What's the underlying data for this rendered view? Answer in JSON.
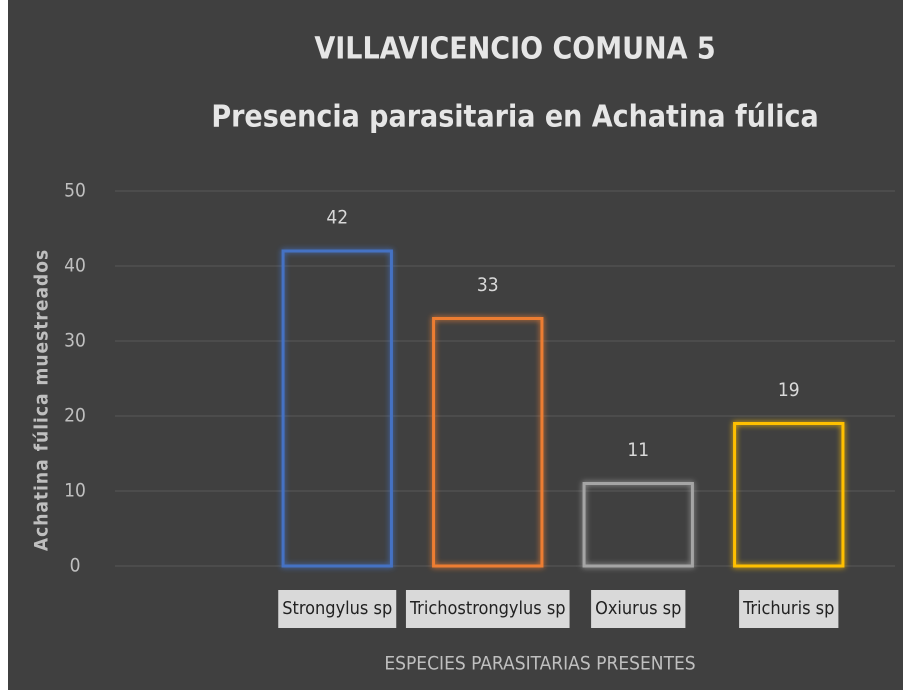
{
  "chart_data": {
    "type": "bar",
    "title": "VILLAVICENCIO COMUNA 5",
    "subtitle": "Presencia parasitaria en Achatina fúlica",
    "x_label": "ESPECIES PARASITARIAS PRESENTES",
    "y_label": "Achatina fúlica muestreados",
    "categories": [
      "Strongylus sp",
      "Trichostrongylus sp",
      "Oxiurus sp",
      "Trichuris sp"
    ],
    "values": [
      42,
      33,
      11,
      19
    ],
    "colors": [
      "#4472c4",
      "#ed7d31",
      "#a5a5a5",
      "#ffc000"
    ],
    "ylim": [
      0,
      50
    ],
    "yticks": [
      0,
      10,
      20,
      30,
      40,
      50
    ],
    "grid": true
  }
}
